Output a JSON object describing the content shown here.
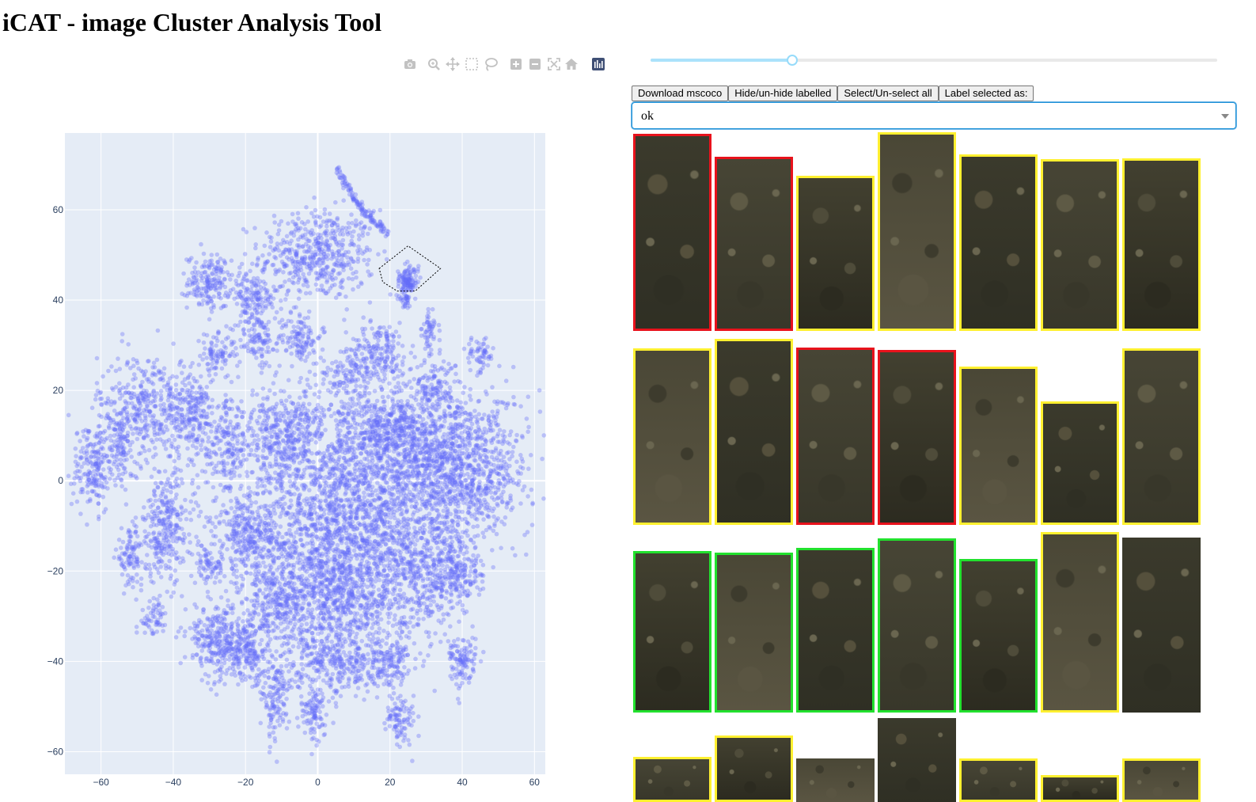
{
  "app": {
    "title": "iCAT - image Cluster Analysis Tool"
  },
  "modebar": {
    "buttons": [
      {
        "icon": "camera-icon",
        "tooltip": "Download plot as a png"
      },
      {
        "icon": "zoom-icon",
        "tooltip": "Zoom"
      },
      {
        "icon": "pan-icon",
        "tooltip": "Pan"
      },
      {
        "icon": "box-select-icon",
        "tooltip": "Box Select"
      },
      {
        "icon": "lasso-select-icon",
        "tooltip": "Lasso Select"
      },
      {
        "icon": "zoom-in-icon",
        "tooltip": "Zoom in"
      },
      {
        "icon": "zoom-out-icon",
        "tooltip": "Zoom out"
      },
      {
        "icon": "autoscale-icon",
        "tooltip": "Autoscale"
      },
      {
        "icon": "reset-axes-icon",
        "tooltip": "Reset axes"
      },
      {
        "icon": "plotly-logo-icon",
        "tooltip": "Produced with Plotly"
      }
    ]
  },
  "controls": {
    "slider_value_fraction": 0.25,
    "buttons": [
      "Download mscoco",
      "Hide/un-hide labelled",
      "Select/Un-select all",
      "Label selected as:"
    ],
    "label_dropdown": {
      "value": "ok"
    }
  },
  "colors": {
    "marker": "#636efa",
    "plot_bg": "#e5ecf6",
    "label_red": "#e8121c",
    "label_yellow": "#fff030",
    "label_green": "#22e12e"
  },
  "gallery": {
    "thumbnail_border_labels": [
      "red",
      "red",
      "yellow",
      "yellow",
      "yellow",
      "yellow",
      "yellow",
      "yellow",
      "yellow",
      "red",
      "red",
      "yellow",
      "yellow",
      "yellow",
      "green",
      "green",
      "green",
      "green",
      "green",
      "yellow",
      "none",
      "yellow",
      "yellow",
      "none",
      "none",
      "yellow",
      "yellow",
      "yellow"
    ]
  },
  "chart_data": {
    "type": "scatter",
    "title": "",
    "xlabel": "",
    "ylabel": "",
    "xlim": [
      -70,
      63
    ],
    "ylim": [
      -65,
      77
    ],
    "x_ticks": [
      -60,
      -40,
      -20,
      0,
      20,
      40,
      60
    ],
    "y_ticks": [
      -60,
      -40,
      -20,
      0,
      20,
      40,
      60
    ],
    "x_tick_labels": [
      "−60",
      "−40",
      "−20",
      "0",
      "20",
      "40",
      "60"
    ],
    "y_tick_labels": [
      "−60",
      "−40",
      "−20",
      "0",
      "20",
      "40",
      "60"
    ],
    "grid": true,
    "legend": "none",
    "clusters": [
      {
        "x": 0,
        "y": 50,
        "sx": 8,
        "sy": 5,
        "n": 500
      },
      {
        "x": -30,
        "y": 44,
        "sx": 3,
        "sy": 3,
        "n": 180
      },
      {
        "x": -18,
        "y": 40,
        "sx": 3.5,
        "sy": 3,
        "n": 150
      },
      {
        "x": -5,
        "y": 32,
        "sx": 3,
        "sy": 3,
        "n": 120
      },
      {
        "x": -17,
        "y": 31,
        "sx": 2.5,
        "sy": 3,
        "n": 100
      },
      {
        "x": 17,
        "y": 29,
        "sx": 4,
        "sy": 3,
        "n": 160
      },
      {
        "x": 9,
        "y": 24,
        "sx": 4,
        "sy": 2,
        "n": 90
      },
      {
        "x": -28,
        "y": 28,
        "sx": 2.5,
        "sy": 2,
        "n": 80
      },
      {
        "x": 45,
        "y": 28,
        "sx": 2,
        "sy": 2,
        "n": 60
      },
      {
        "x": 32,
        "y": 21,
        "sx": 3,
        "sy": 3,
        "n": 120
      },
      {
        "x": -45,
        "y": 16,
        "sx": 8,
        "sy": 6,
        "n": 500
      },
      {
        "x": -34,
        "y": 14,
        "sx": 3,
        "sy": 4,
        "n": 120
      },
      {
        "x": -62,
        "y": 3,
        "sx": 3,
        "sy": 5,
        "n": 200
      },
      {
        "x": -54,
        "y": 8,
        "sx": 2,
        "sy": 4,
        "n": 90
      },
      {
        "x": -42,
        "y": -10,
        "sx": 4,
        "sy": 6,
        "n": 300
      },
      {
        "x": -52,
        "y": -17,
        "sx": 2,
        "sy": 3,
        "n": 100
      },
      {
        "x": -30,
        "y": -19,
        "sx": 2,
        "sy": 2,
        "n": 70
      },
      {
        "x": -25,
        "y": 7,
        "sx": 3,
        "sy": 5,
        "n": 160
      },
      {
        "x": -10,
        "y": 10,
        "sx": 6,
        "sy": 5,
        "n": 350
      },
      {
        "x": 10,
        "y": -5,
        "sx": 14,
        "sy": 14,
        "n": 2200
      },
      {
        "x": 38,
        "y": 3,
        "sx": 10,
        "sy": 8,
        "n": 1200
      },
      {
        "x": 20,
        "y": 12,
        "sx": 6,
        "sy": 4,
        "n": 300
      },
      {
        "x": -18,
        "y": -12,
        "sx": 5,
        "sy": 5,
        "n": 350
      },
      {
        "x": 5,
        "y": -25,
        "sx": 10,
        "sy": 8,
        "n": 900
      },
      {
        "x": -12,
        "y": -28,
        "sx": 4,
        "sy": 4,
        "n": 200
      },
      {
        "x": 30,
        "y": -20,
        "sx": 5,
        "sy": 6,
        "n": 300
      },
      {
        "x": 40,
        "y": -20,
        "sx": 3,
        "sy": 4,
        "n": 150
      },
      {
        "x": -28,
        "y": -35,
        "sx": 4,
        "sy": 4,
        "n": 250
      },
      {
        "x": -20,
        "y": -38,
        "sx": 4,
        "sy": 3,
        "n": 200
      },
      {
        "x": 40,
        "y": -40,
        "sx": 2,
        "sy": 3,
        "n": 110
      },
      {
        "x": 5,
        "y": -40,
        "sx": 6,
        "sy": 4,
        "n": 250
      },
      {
        "x": 20,
        "y": -40,
        "sx": 4,
        "sy": 3,
        "n": 150
      },
      {
        "x": -12,
        "y": -45,
        "sx": 3,
        "sy": 3,
        "n": 100
      },
      {
        "x": -1,
        "y": -52,
        "sx": 2,
        "sy": 3,
        "n": 90
      },
      {
        "x": 23,
        "y": -53,
        "sx": 2,
        "sy": 3,
        "n": 90
      },
      {
        "x": -12,
        "y": -52,
        "sx": 1.5,
        "sy": 3,
        "n": 50
      },
      {
        "x": -45,
        "y": -30,
        "sx": 2,
        "sy": 2,
        "n": 60
      },
      {
        "x": 25,
        "y": 44,
        "sx": 1.2,
        "sy": 1.5,
        "n": 120
      },
      {
        "x": 24,
        "y": 40,
        "sx": 1,
        "sy": 1,
        "n": 30
      },
      {
        "x": 31,
        "y": 34,
        "sx": 1,
        "sy": 3,
        "n": 50
      }
    ],
    "arc": {
      "from": [
        5,
        69
      ],
      "to": [
        19,
        55
      ],
      "n": 120
    },
    "lasso_polygon": [
      [
        17,
        47
      ],
      [
        25,
        52
      ],
      [
        34,
        47
      ],
      [
        27,
        42
      ],
      [
        22,
        42
      ],
      [
        18,
        44
      ]
    ]
  }
}
